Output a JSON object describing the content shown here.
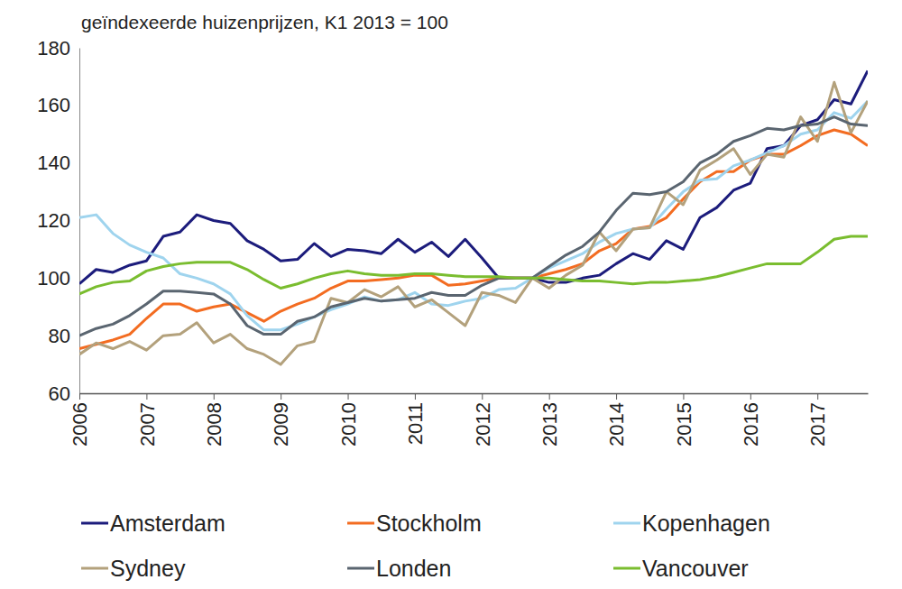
{
  "chart_data": {
    "type": "line",
    "subtitle": "geïndexeerde huizenprijzen, K1 2013 = 100",
    "x": [
      2006,
      2006.25,
      2006.5,
      2006.75,
      2007,
      2007.25,
      2007.5,
      2007.75,
      2008,
      2008.25,
      2008.5,
      2008.75,
      2009,
      2009.25,
      2009.5,
      2009.75,
      2010,
      2010.25,
      2010.5,
      2010.75,
      2011,
      2011.25,
      2011.5,
      2011.75,
      2012,
      2012.25,
      2012.5,
      2012.75,
      2013,
      2013.25,
      2013.5,
      2013.75,
      2014,
      2014.25,
      2014.5,
      2014.75,
      2015,
      2015.25,
      2015.5,
      2015.75,
      2016,
      2016.25,
      2016.5,
      2016.75,
      2017,
      2017.25,
      2017.5,
      2017.75
    ],
    "xlim": [
      2006,
      2017.75
    ],
    "xticks": [
      2006,
      2007,
      2008,
      2009,
      2010,
      2011,
      2012,
      2013,
      2014,
      2015,
      2016,
      2017
    ],
    "ylim": [
      60,
      180
    ],
    "yticks": [
      60,
      80,
      100,
      120,
      140,
      160,
      180
    ],
    "grid": false,
    "legend": "bottom",
    "series": [
      {
        "name": "Amsterdam",
        "color": "#1c1c7c",
        "values": [
          98,
          103,
          102,
          104.5,
          106,
          114.5,
          116,
          122,
          120,
          119,
          113,
          110,
          106,
          106.5,
          112,
          107.5,
          110,
          109.5,
          108.5,
          113.5,
          109,
          112.5,
          107.5,
          113.5,
          107,
          100,
          100,
          100,
          98.5,
          98.5,
          100,
          101,
          105,
          108.5,
          106.5,
          113,
          110,
          121,
          124.5,
          130.5,
          133,
          145,
          146,
          153,
          155,
          162,
          160.5,
          172
        ]
      },
      {
        "name": "Stockholm",
        "color": "#f36c21",
        "values": [
          75.5,
          77,
          78.5,
          80.5,
          86,
          91,
          91,
          88.5,
          90,
          91,
          88,
          85,
          88.5,
          91,
          93,
          96.5,
          99,
          99,
          99.5,
          100,
          101,
          101,
          97.5,
          98,
          99,
          100,
          100,
          100,
          101.5,
          103,
          105,
          109.5,
          112,
          117,
          118,
          121,
          127.5,
          133.5,
          137,
          137,
          141,
          143,
          143,
          146,
          149.5,
          151.5,
          150,
          146
        ]
      },
      {
        "name": "Kopenhagen",
        "color": "#9fd4ee",
        "values": [
          121,
          122,
          115.5,
          111.5,
          109,
          107,
          101.5,
          100,
          98,
          94.5,
          87,
          82,
          82,
          84,
          86.5,
          89,
          91,
          93.5,
          92,
          92.5,
          95,
          91,
          90.5,
          92,
          93,
          96,
          96.5,
          100,
          103.5,
          106,
          108.5,
          112.5,
          115.5,
          117,
          117.5,
          124,
          130,
          134,
          134.5,
          139,
          141,
          143.5,
          146,
          150,
          151.5,
          157.5,
          155.5,
          161.5
        ]
      },
      {
        "name": "Sydney",
        "color": "#b3a17c",
        "values": [
          73.5,
          77.5,
          75.5,
          78,
          75,
          80,
          80.5,
          84.5,
          77.5,
          80.5,
          75.5,
          73.5,
          70,
          76.5,
          78,
          93,
          91.5,
          96,
          93.5,
          97,
          90,
          92.5,
          88,
          83.5,
          95,
          94,
          91.5,
          100,
          96.5,
          101,
          104.5,
          116,
          109.5,
          117,
          117.5,
          130,
          125.5,
          137.5,
          141,
          145,
          136,
          143,
          142,
          156,
          147.5,
          168,
          150.5,
          161.5
        ]
      },
      {
        "name": "Londen",
        "color": "#5a6570",
        "values": [
          80,
          82.5,
          84,
          87,
          91,
          95.5,
          95.5,
          95,
          94.5,
          91,
          83.5,
          80.5,
          80.5,
          85,
          86.5,
          90,
          91.5,
          93,
          92,
          92.5,
          93,
          95,
          94,
          94,
          97.5,
          100,
          100,
          100,
          104,
          108,
          111,
          116,
          123.5,
          129.5,
          129,
          130,
          133.5,
          140,
          143,
          147.5,
          149.5,
          152,
          151.5,
          153,
          153.5,
          156,
          153.5,
          153
        ]
      },
      {
        "name": "Vancouver",
        "color": "#7abd2f",
        "values": [
          94.5,
          97,
          98.5,
          99,
          102.5,
          104,
          105,
          105.5,
          105.5,
          105.5,
          103,
          99.5,
          96.5,
          98,
          100,
          101.5,
          102.5,
          101.5,
          101,
          101,
          101.5,
          101.5,
          101,
          100.5,
          100.5,
          100.5,
          100,
          100,
          100,
          99.5,
          99,
          99,
          98.5,
          98,
          98.5,
          98.5,
          99,
          99.5,
          100.5,
          102,
          103.5,
          105,
          105,
          105,
          109,
          113.5,
          114.5,
          114.5
        ]
      }
    ]
  }
}
